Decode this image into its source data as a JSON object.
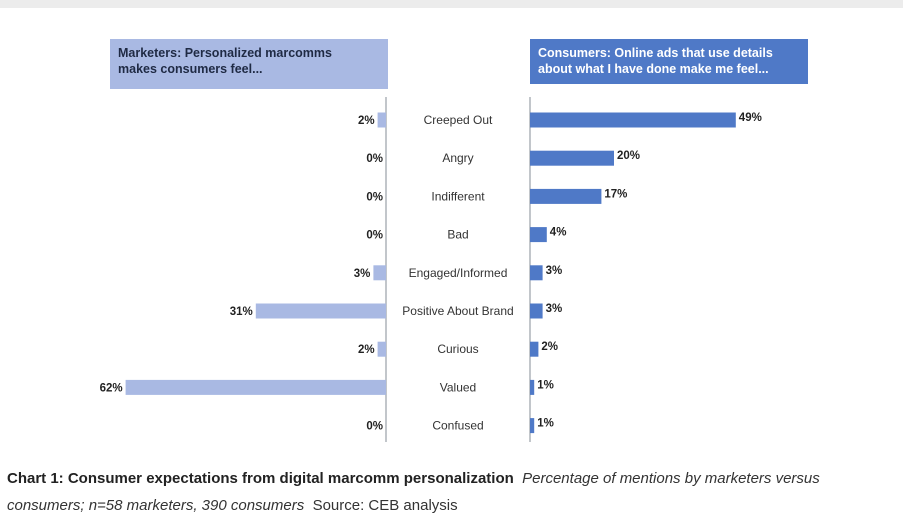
{
  "chart_data": {
    "type": "bar",
    "orientation": "horizontal",
    "layout": "butterfly",
    "categories": [
      "Creeped Out",
      "Angry",
      "Indifferent",
      "Bad",
      "Engaged/Informed",
      "Positive About Brand",
      "Curious",
      "Valued",
      "Confused"
    ],
    "series": [
      {
        "name": "Marketers: Personalized marcomms makes consumers feel...",
        "side": "left",
        "color": "#a9b9e3",
        "values": [
          2,
          0,
          0,
          0,
          3,
          31,
          2,
          62,
          0
        ],
        "labels": [
          "2%",
          "0%",
          "0%",
          "0%",
          "3%",
          "31%",
          "2%",
          "62%",
          "0%"
        ]
      },
      {
        "name": "Consumers: Online ads that use details about what I have done make me feel...",
        "side": "right",
        "color": "#4f79c7",
        "values": [
          49,
          20,
          17,
          4,
          3,
          3,
          2,
          1,
          1
        ],
        "labels": [
          "49%",
          "20%",
          "17%",
          "4%",
          "3%",
          "3%",
          "2%",
          "1%",
          "1%"
        ]
      }
    ],
    "unit": "%",
    "grid": false,
    "legend": "none"
  },
  "headers": {
    "left_line1": "Marketers: Personalized marcomms",
    "left_line2": "makes consumers feel...",
    "right_line1": "Consumers: Online ads that use details",
    "right_line2": "about what I have done make me feel..."
  },
  "caption": {
    "title": "Chart 1: Consumer expectations from digital marcomm personalization",
    "subtitle": "Percentage of mentions by marketers versus consumers; n=58 marketers, 390 consumers",
    "source": "Source: CEB analysis"
  }
}
